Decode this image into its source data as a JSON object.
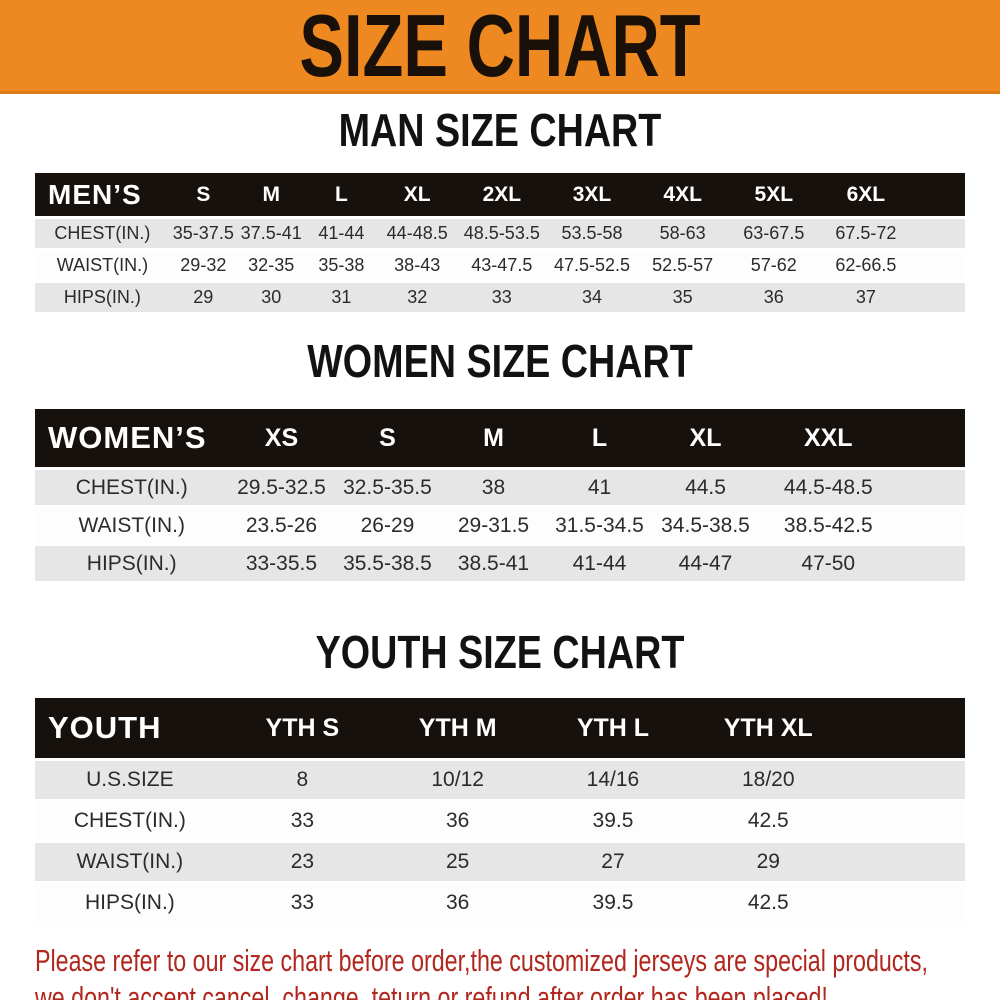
{
  "banner": {
    "title": "SIZE CHART"
  },
  "colors": {
    "banner_bg": "#ee8820",
    "banner_text": "#191109",
    "table_header_bg": "#16110d",
    "table_header_text": "#ffffff",
    "row_alt_bg": "#e6e6e6",
    "row_bg": "#fdfdfd",
    "cell_text": "#2b2b2b",
    "footer_text": "#b1271e"
  },
  "sections": [
    {
      "id": "men",
      "title": "MAN SIZE CHART",
      "corner_label": "MEN’S",
      "columns": [
        "S",
        "M",
        "L",
        "XL",
        "2XL",
        "3XL",
        "4XL",
        "5XL",
        "6XL"
      ],
      "rows": [
        {
          "label": "CHEST(IN.)",
          "values": [
            "35-37.5",
            "37.5-41",
            "41-44",
            "44-48.5",
            "48.5-53.5",
            "53.5-58",
            "58-63",
            "63-67.5",
            "67.5-72"
          ]
        },
        {
          "label": "WAIST(IN.)",
          "values": [
            "29-32",
            "32-35",
            "35-38",
            "38-43",
            "43-47.5",
            "47.5-52.5",
            "52.5-57",
            "57-62",
            "62-66.5"
          ]
        },
        {
          "label": "HIPS(IN.)",
          "values": [
            "29",
            "30",
            "31",
            "32",
            "33",
            "34",
            "35",
            "36",
            "37"
          ]
        }
      ]
    },
    {
      "id": "women",
      "title": "WOMEN SIZE CHART",
      "corner_label": "WOMEN’S",
      "columns": [
        "XS",
        "S",
        "M",
        "L",
        "XL",
        "XXL"
      ],
      "rows": [
        {
          "label": "CHEST(IN.)",
          "values": [
            "29.5-32.5",
            "32.5-35.5",
            "38",
            "41",
            "44.5",
            "44.5-48.5"
          ]
        },
        {
          "label": "WAIST(IN.)",
          "values": [
            "23.5-26",
            "26-29",
            "29-31.5",
            "31.5-34.5",
            "34.5-38.5",
            "38.5-42.5"
          ]
        },
        {
          "label": "HIPS(IN.)",
          "values": [
            "33-35.5",
            "35.5-38.5",
            "38.5-41",
            "41-44",
            "44-47",
            "47-50"
          ]
        }
      ]
    },
    {
      "id": "youth",
      "title": "YOUTH SIZE CHART",
      "corner_label": "YOUTH",
      "columns": [
        "YTH S",
        "YTH M",
        "YTH L",
        "YTH XL"
      ],
      "rows": [
        {
          "label": "U.S.SIZE",
          "values": [
            "8",
            "10/12",
            "14/16",
            "18/20"
          ]
        },
        {
          "label": "CHEST(IN.)",
          "values": [
            "33",
            "36",
            "39.5",
            "42.5"
          ]
        },
        {
          "label": "WAIST(IN.)",
          "values": [
            "23",
            "25",
            "27",
            "29"
          ]
        },
        {
          "label": "HIPS(IN.)",
          "values": [
            "33",
            "36",
            "39.5",
            "42.5"
          ]
        }
      ]
    }
  ],
  "footer": {
    "lines": [
      "Please refer to our size chart before order,the customized jerseys are special products,",
      "we don't accept cancel, change, teturn or refund after order has been placed!"
    ]
  }
}
